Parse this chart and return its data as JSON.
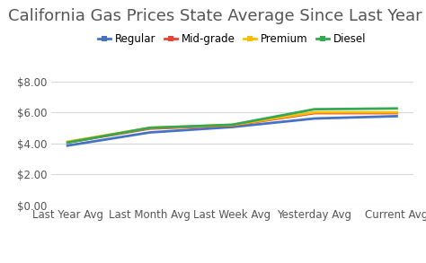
{
  "title": "California Gas Prices State Average Since Last Year",
  "categories": [
    "Last Year Avg",
    "Last Month Avg",
    "Last Week Avg",
    "Yesterday Avg",
    "Current Avg"
  ],
  "series": [
    {
      "label": "Regular",
      "color": "#4472c4",
      "values": [
        3.85,
        4.7,
        5.05,
        5.6,
        5.75
      ]
    },
    {
      "label": "Mid-grade",
      "color": "#ea4335",
      "values": [
        4.05,
        4.95,
        5.15,
        5.95,
        5.95
      ]
    },
    {
      "label": "Premium",
      "color": "#fbbc04",
      "values": [
        4.1,
        5.0,
        5.18,
        6.0,
        6.0
      ]
    },
    {
      "label": "Diesel",
      "color": "#34a853",
      "values": [
        4.05,
        5.0,
        5.2,
        6.2,
        6.25
      ]
    }
  ],
  "ylim": [
    0.0,
    8.5
  ],
  "yticks": [
    0.0,
    2.0,
    4.0,
    6.0,
    8.0
  ],
  "background_color": "#ffffff",
  "grid_color": "#d8d8d8",
  "title_fontsize": 13,
  "tick_fontsize": 8.5,
  "legend_fontsize": 8.5,
  "line_width": 2.0,
  "title_color": "#555555",
  "tick_color": "#555555"
}
